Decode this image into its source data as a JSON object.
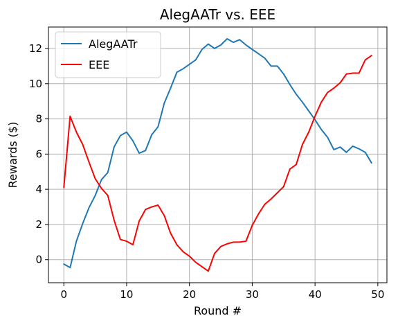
{
  "chart_data": {
    "type": "line",
    "title": "AlegAATr vs. EEE",
    "xlabel": "Round #",
    "ylabel": "Rewards ($)",
    "xlim": [
      -2.45,
      51.45
    ],
    "ylim": [
      -1.31,
      13.22
    ],
    "xticks": [
      0,
      10,
      20,
      30,
      40,
      50
    ],
    "yticks": [
      0,
      2,
      4,
      6,
      8,
      10,
      12
    ],
    "grid": true,
    "legend_position": "top-left",
    "x": [
      0,
      1,
      2,
      3,
      4,
      5,
      6,
      7,
      8,
      9,
      10,
      11,
      12,
      13,
      14,
      15,
      16,
      17,
      18,
      19,
      20,
      21,
      22,
      23,
      24,
      25,
      26,
      27,
      28,
      29,
      30,
      31,
      32,
      33,
      34,
      35,
      36,
      37,
      38,
      39,
      40,
      41,
      42,
      43,
      44,
      45,
      46,
      47,
      48,
      49
    ],
    "series": [
      {
        "name": "AlegAATr",
        "color": "#1f77b4",
        "values": [
          -0.25,
          -0.45,
          1.05,
          2.05,
          2.95,
          3.65,
          4.55,
          4.95,
          6.4,
          7.05,
          7.25,
          6.75,
          6.05,
          6.2,
          7.1,
          7.55,
          8.9,
          9.75,
          10.65,
          10.85,
          11.1,
          11.35,
          11.95,
          12.25,
          12.0,
          12.2,
          12.55,
          12.35,
          12.5,
          12.2,
          11.95,
          11.7,
          11.45,
          11.0,
          11.0,
          10.55,
          9.95,
          9.4,
          8.95,
          8.45,
          7.95,
          7.4,
          6.95,
          6.25,
          6.4,
          6.1,
          6.45,
          6.3,
          6.1,
          5.5
        ]
      },
      {
        "name": "EEE",
        "color": "#ff0000",
        "values": [
          4.1,
          8.15,
          7.25,
          6.55,
          5.55,
          4.6,
          4.05,
          3.65,
          2.25,
          1.15,
          1.05,
          0.85,
          2.2,
          2.85,
          3.0,
          3.1,
          2.5,
          1.5,
          0.85,
          0.45,
          0.2,
          -0.15,
          -0.4,
          -0.65,
          0.35,
          0.75,
          0.9,
          1.0,
          1.0,
          1.05,
          1.95,
          2.6,
          3.15,
          3.45,
          3.8,
          4.15,
          5.15,
          5.4,
          6.55,
          7.25,
          8.15,
          8.95,
          9.5,
          9.75,
          10.05,
          10.55,
          10.6,
          10.6,
          11.35,
          11.6
        ]
      }
    ]
  }
}
